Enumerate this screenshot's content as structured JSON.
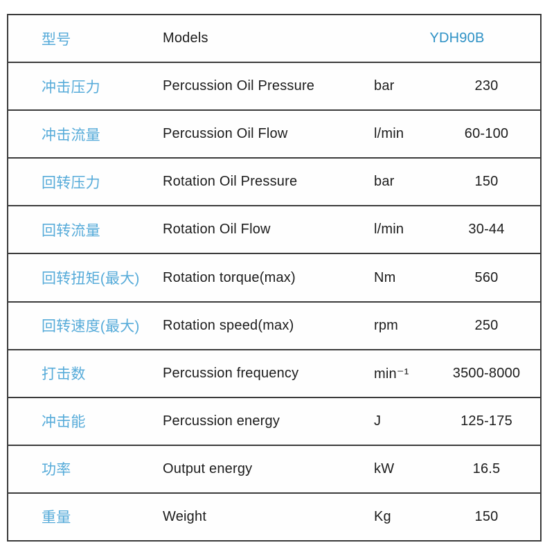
{
  "colors": {
    "border": "#3a3a3a",
    "text": "#1b1b1b",
    "chinese_accent": "#56abd9",
    "model_value": "#2d91c5",
    "background": "#ffffff"
  },
  "table": {
    "columns": [
      "chinese_label",
      "english_label",
      "unit",
      "value"
    ],
    "rows": [
      {
        "cn": "型号",
        "en": "Models",
        "unit": "",
        "value": "YDH90B",
        "model": true
      },
      {
        "cn": "冲击压力",
        "en": "Percussion Oil Pressure",
        "unit": "bar",
        "value": "230",
        "model": false
      },
      {
        "cn": "冲击流量",
        "en": "Percussion Oil Flow",
        "unit": "l/min",
        "value": "60-100",
        "model": false
      },
      {
        "cn": "回转压力",
        "en": "Rotation Oil Pressure",
        "unit": "bar",
        "value": "150",
        "model": false
      },
      {
        "cn": "回转流量",
        "en": "Rotation Oil Flow",
        "unit": "l/min",
        "value": "30-44",
        "model": false
      },
      {
        "cn": "回转扭矩(最大)",
        "en": "Rotation torque(max)",
        "unit": "Nm",
        "value": "560",
        "model": false
      },
      {
        "cn": "回转速度(最大)",
        "en": "Rotation speed(max)",
        "unit": "rpm",
        "value": "250",
        "model": false
      },
      {
        "cn": "打击数",
        "en": "Percussion frequency",
        "unit": "min⁻¹",
        "value": "3500-8000",
        "model": false
      },
      {
        "cn": "冲击能",
        "en": "Percussion energy",
        "unit": "J",
        "value": "125-175",
        "model": false
      },
      {
        "cn": "功率",
        "en": "Output energy",
        "unit": "kW",
        "value": "16.5",
        "model": false
      },
      {
        "cn": "重量",
        "en": "Weight",
        "unit": "Kg",
        "value": "150",
        "model": false
      }
    ]
  }
}
